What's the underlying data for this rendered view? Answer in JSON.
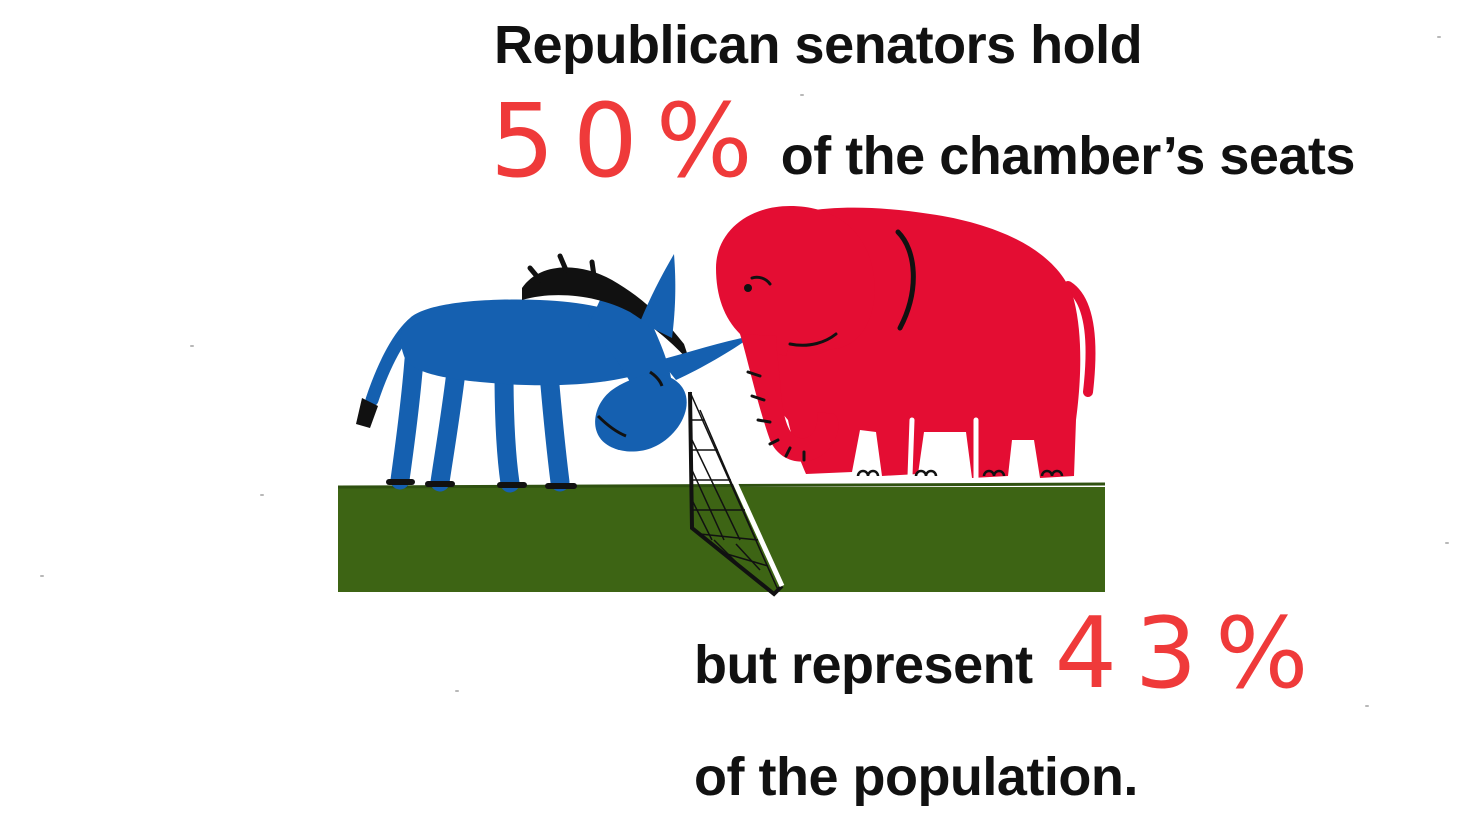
{
  "headline": {
    "line1": "Republican senators hold",
    "stat1": "50%",
    "line2_rest": "of the chamber’s seats",
    "line3_lead": "but represent",
    "stat2": "43%",
    "line4": "of the population."
  },
  "colors": {
    "stat": "#ef3a3a",
    "text": "#111111",
    "donkey": "#1560b0",
    "elephant": "#e40d33",
    "grass": "#3d6414"
  },
  "illustration": {
    "icons": [
      "donkey-icon",
      "elephant-icon",
      "net-icon",
      "grass-field"
    ]
  }
}
